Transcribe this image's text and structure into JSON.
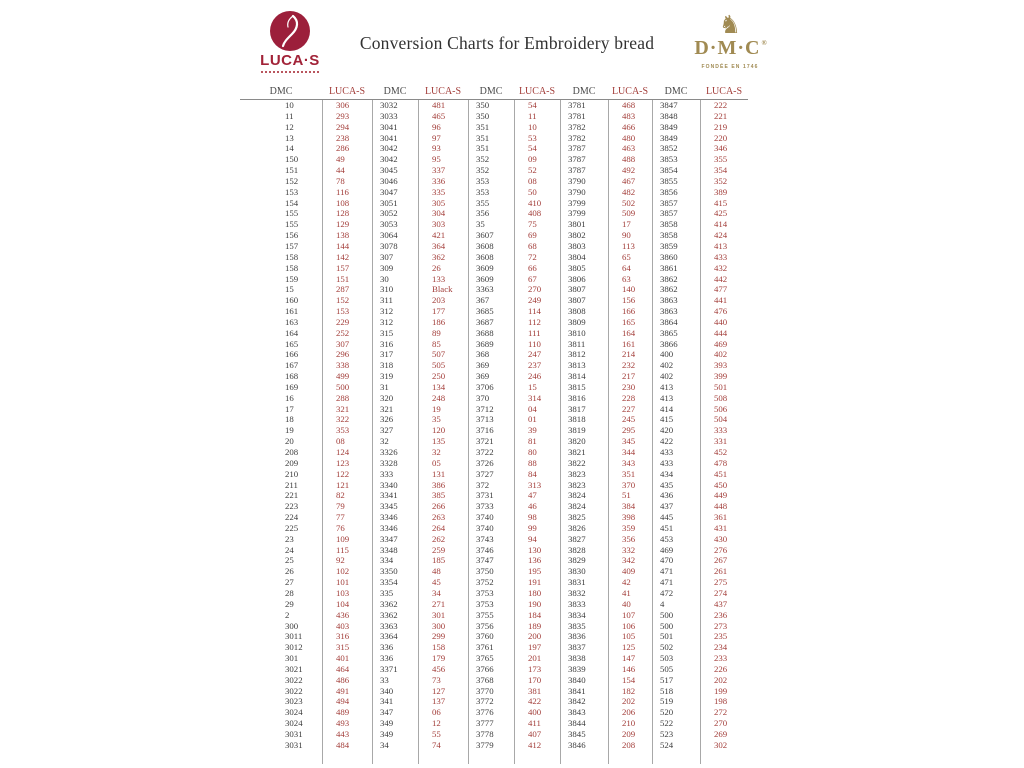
{
  "title": "Conversion Charts for Embroidery bread",
  "branding": {
    "lucas_wordmark": "LUCA·S",
    "dmc_wordmark": "D·M·C",
    "dmc_registered": "®",
    "dmc_founded": "FONDÉE EN 1746"
  },
  "colors": {
    "lucas_red": "#9c1f3b",
    "table_red": "#a33e3a",
    "dmc_gold": "#a08a52",
    "dmc_text": "#3d3d3d",
    "grid_line": "#a8a8a8"
  },
  "table": {
    "column_headers": [
      "DMC",
      "LUCA-S",
      "DMC",
      "LUCA-S",
      "DMC",
      "LUCA-S",
      "DMC",
      "LUCA-S",
      "DMC",
      "LUCA-S"
    ],
    "rows": [
      [
        "10",
        "306",
        "3032",
        "481",
        "350",
        "54",
        "3781",
        "468",
        "3847",
        "222"
      ],
      [
        "11",
        "293",
        "3033",
        "465",
        "350",
        "11",
        "3781",
        "483",
        "3848",
        "221"
      ],
      [
        "12",
        "294",
        "3041",
        "96",
        "351",
        "10",
        "3782",
        "466",
        "3849",
        "219"
      ],
      [
        "13",
        "238",
        "3041",
        "97",
        "351",
        "53",
        "3782",
        "480",
        "3849",
        "220"
      ],
      [
        "14",
        "286",
        "3042",
        "93",
        "351",
        "54",
        "3787",
        "463",
        "3852",
        "346"
      ],
      [
        "150",
        "49",
        "3042",
        "95",
        "352",
        "09",
        "3787",
        "488",
        "3853",
        "355"
      ],
      [
        "151",
        "44",
        "3045",
        "337",
        "352",
        "52",
        "3787",
        "492",
        "3854",
        "354"
      ],
      [
        "152",
        "78",
        "3046",
        "336",
        "353",
        "08",
        "3790",
        "467",
        "3855",
        "352"
      ],
      [
        "153",
        "116",
        "3047",
        "335",
        "353",
        "50",
        "3790",
        "482",
        "3856",
        "389"
      ],
      [
        "154",
        "108",
        "3051",
        "305",
        "355",
        "410",
        "3799",
        "502",
        "3857",
        "415"
      ],
      [
        "155",
        "128",
        "3052",
        "304",
        "356",
        "408",
        "3799",
        "509",
        "3857",
        "425"
      ],
      [
        "155",
        "129",
        "3053",
        "303",
        "35",
        "75",
        "3801",
        "17",
        "3858",
        "414"
      ],
      [
        "156",
        "138",
        "3064",
        "421",
        "3607",
        "69",
        "3802",
        "90",
        "3858",
        "424"
      ],
      [
        "157",
        "144",
        "3078",
        "364",
        "3608",
        "68",
        "3803",
        "113",
        "3859",
        "413"
      ],
      [
        "158",
        "142",
        "307",
        "362",
        "3608",
        "72",
        "3804",
        "65",
        "3860",
        "433"
      ],
      [
        "158",
        "157",
        "309",
        "26",
        "3609",
        "66",
        "3805",
        "64",
        "3861",
        "432"
      ],
      [
        "159",
        "151",
        "30",
        "133",
        "3609",
        "67",
        "3806",
        "63",
        "3862",
        "442"
      ],
      [
        "15",
        "287",
        "310",
        "Black",
        "3363",
        "270",
        "3807",
        "140",
        "3862",
        "477"
      ],
      [
        "160",
        "152",
        "311",
        "203",
        "367",
        "249",
        "3807",
        "156",
        "3863",
        "441"
      ],
      [
        "161",
        "153",
        "312",
        "177",
        "3685",
        "114",
        "3808",
        "166",
        "3863",
        "476"
      ],
      [
        "163",
        "229",
        "312",
        "186",
        "3687",
        "112",
        "3809",
        "165",
        "3864",
        "440"
      ],
      [
        "164",
        "252",
        "315",
        "89",
        "3688",
        "111",
        "3810",
        "164",
        "3865",
        "444"
      ],
      [
        "165",
        "307",
        "316",
        "85",
        "3689",
        "110",
        "3811",
        "161",
        "3866",
        "469"
      ],
      [
        "166",
        "296",
        "317",
        "507",
        "368",
        "247",
        "3812",
        "214",
        "400",
        "402"
      ],
      [
        "167",
        "338",
        "318",
        "505",
        "369",
        "237",
        "3813",
        "232",
        "402",
        "393"
      ],
      [
        "168",
        "499",
        "319",
        "250",
        "369",
        "246",
        "3814",
        "217",
        "402",
        "399"
      ],
      [
        "169",
        "500",
        "31",
        "134",
        "3706",
        "15",
        "3815",
        "230",
        "413",
        "501"
      ],
      [
        "16",
        "288",
        "320",
        "248",
        "370",
        "314",
        "3816",
        "228",
        "413",
        "508"
      ],
      [
        "17",
        "321",
        "321",
        "19",
        "3712",
        "04",
        "3817",
        "227",
        "414",
        "506"
      ],
      [
        "18",
        "322",
        "326",
        "35",
        "3713",
        "01",
        "3818",
        "245",
        "415",
        "504"
      ],
      [
        "19",
        "353",
        "327",
        "120",
        "3716",
        "39",
        "3819",
        "295",
        "420",
        "333"
      ],
      [
        "20",
        "08",
        "32",
        "135",
        "3721",
        "81",
        "3820",
        "345",
        "422",
        "331"
      ],
      [
        "208",
        "124",
        "3326",
        "32",
        "3722",
        "80",
        "3821",
        "344",
        "433",
        "452"
      ],
      [
        "209",
        "123",
        "3328",
        "05",
        "3726",
        "88",
        "3822",
        "343",
        "433",
        "478"
      ],
      [
        "210",
        "122",
        "333",
        "131",
        "3727",
        "84",
        "3823",
        "351",
        "434",
        "451"
      ],
      [
        "211",
        "121",
        "3340",
        "386",
        "372",
        "313",
        "3823",
        "370",
        "435",
        "450"
      ],
      [
        "221",
        "82",
        "3341",
        "385",
        "3731",
        "47",
        "3824",
        "51",
        "436",
        "449"
      ],
      [
        "223",
        "79",
        "3345",
        "266",
        "3733",
        "46",
        "3824",
        "384",
        "437",
        "448"
      ],
      [
        "224",
        "77",
        "3346",
        "263",
        "3740",
        "98",
        "3825",
        "398",
        "445",
        "361"
      ],
      [
        "225",
        "76",
        "3346",
        "264",
        "3740",
        "99",
        "3826",
        "359",
        "451",
        "431"
      ],
      [
        "23",
        "109",
        "3347",
        "262",
        "3743",
        "94",
        "3827",
        "356",
        "453",
        "430"
      ],
      [
        "24",
        "115",
        "3348",
        "259",
        "3746",
        "130",
        "3828",
        "332",
        "469",
        "276"
      ],
      [
        "25",
        "92",
        "334",
        "185",
        "3747",
        "136",
        "3829",
        "342",
        "470",
        "267"
      ],
      [
        "26",
        "102",
        "3350",
        "48",
        "3750",
        "195",
        "3830",
        "409",
        "471",
        "261"
      ],
      [
        "27",
        "101",
        "3354",
        "45",
        "3752",
        "191",
        "3831",
        "42",
        "471",
        "275"
      ],
      [
        "28",
        "103",
        "335",
        "34",
        "3753",
        "180",
        "3832",
        "41",
        "472",
        "274"
      ],
      [
        "29",
        "104",
        "3362",
        "271",
        "3753",
        "190",
        "3833",
        "40",
        "4",
        "437"
      ],
      [
        "2",
        "436",
        "3362",
        "301",
        "3755",
        "184",
        "3834",
        "107",
        "500",
        "236"
      ],
      [
        "300",
        "403",
        "3363",
        "300",
        "3756",
        "189",
        "3835",
        "106",
        "500",
        "273"
      ],
      [
        "3011",
        "316",
        "3364",
        "299",
        "3760",
        "200",
        "3836",
        "105",
        "501",
        "235"
      ],
      [
        "3012",
        "315",
        "336",
        "158",
        "3761",
        "197",
        "3837",
        "125",
        "502",
        "234"
      ],
      [
        "301",
        "401",
        "336",
        "179",
        "3765",
        "201",
        "3838",
        "147",
        "503",
        "233"
      ],
      [
        "3021",
        "464",
        "3371",
        "456",
        "3766",
        "173",
        "3839",
        "146",
        "505",
        "226"
      ],
      [
        "3022",
        "486",
        "33",
        "73",
        "3768",
        "170",
        "3840",
        "154",
        "517",
        "202"
      ],
      [
        "3022",
        "491",
        "340",
        "127",
        "3770",
        "381",
        "3841",
        "182",
        "518",
        "199"
      ],
      [
        "3023",
        "494",
        "341",
        "137",
        "3772",
        "422",
        "3842",
        "202",
        "519",
        "198"
      ],
      [
        "3024",
        "489",
        "347",
        "06",
        "3776",
        "400",
        "3843",
        "206",
        "520",
        "272"
      ],
      [
        "3024",
        "493",
        "349",
        "12",
        "3777",
        "411",
        "3844",
        "210",
        "522",
        "270"
      ],
      [
        "3031",
        "443",
        "349",
        "55",
        "3778",
        "407",
        "3845",
        "209",
        "523",
        "269"
      ],
      [
        "3031",
        "484",
        "34",
        "74",
        "3779",
        "412",
        "3846",
        "208",
        "524",
        "302"
      ]
    ]
  }
}
